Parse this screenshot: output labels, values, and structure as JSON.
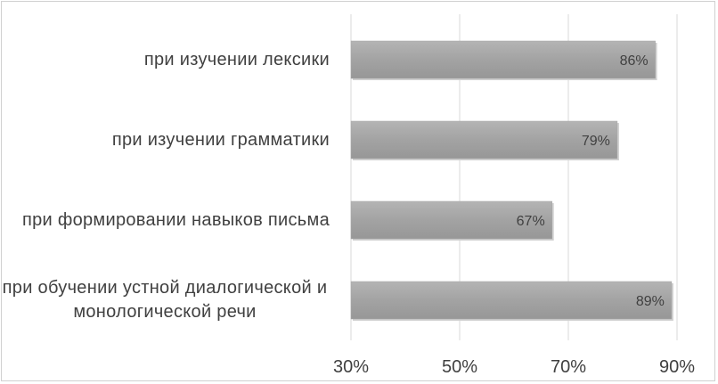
{
  "chart_data": {
    "type": "bar",
    "orientation": "horizontal",
    "categories": [
      "при изучении лексики",
      "при изучении грамматики",
      "при формировании навыков письма",
      "при обучении устной диалогической и монологической речи"
    ],
    "values": [
      86,
      79,
      67,
      89
    ],
    "value_labels": [
      "86%",
      "79%",
      "67%",
      "89%"
    ],
    "color": "#a6a6a6",
    "xlim": [
      30,
      90
    ],
    "xticks": [
      {
        "value": 30,
        "label": "30%"
      },
      {
        "value": 50,
        "label": "50%"
      },
      {
        "value": 70,
        "label": "70%"
      },
      {
        "value": 90,
        "label": "90%"
      }
    ],
    "grid": true
  }
}
